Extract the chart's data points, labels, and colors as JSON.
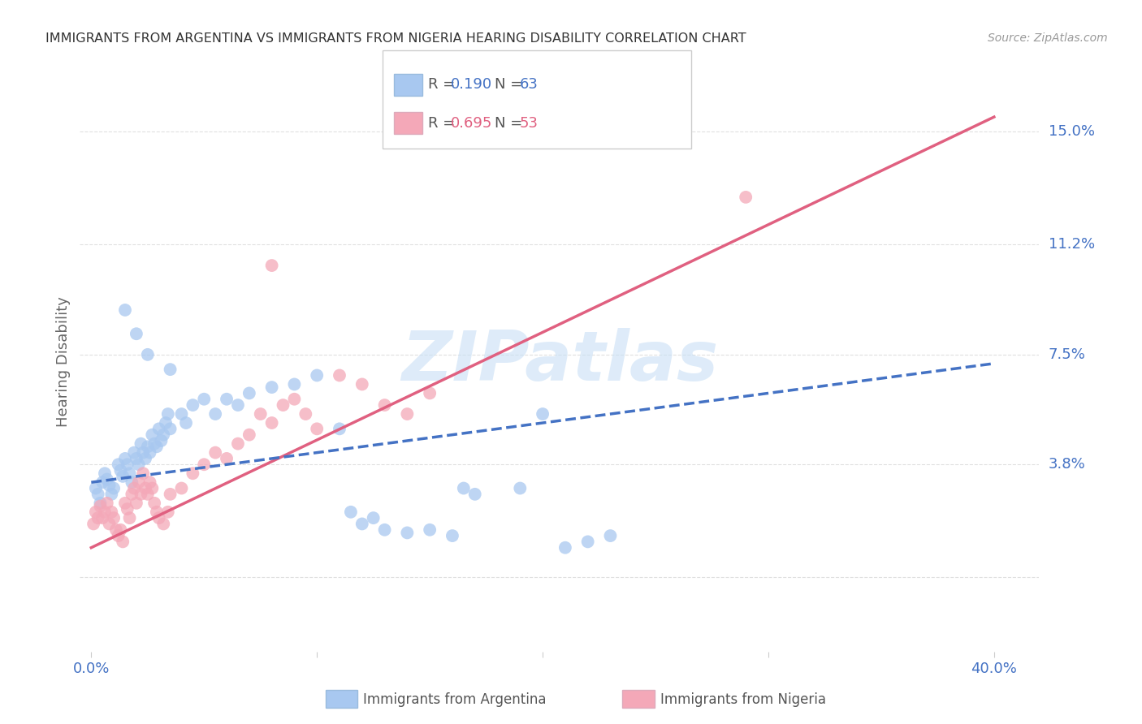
{
  "title": "IMMIGRANTS FROM ARGENTINA VS IMMIGRANTS FROM NIGERIA HEARING DISABILITY CORRELATION CHART",
  "source": "Source: ZipAtlas.com",
  "ylabel": "Hearing Disability",
  "y_ticks": [
    0.0,
    0.038,
    0.075,
    0.112,
    0.15
  ],
  "y_tick_labels": [
    "",
    "3.8%",
    "7.5%",
    "11.2%",
    "15.0%"
  ],
  "xlim": [
    -0.005,
    0.42
  ],
  "ylim": [
    -0.025,
    0.17
  ],
  "argentina_color": "#a8c8f0",
  "nigeria_color": "#f4a8b8",
  "argentina_line_color": "#4472c4",
  "nigeria_line_color": "#e06080",
  "watermark": "ZIPatlas",
  "watermark_color": "#c8dff5",
  "background_color": "#ffffff",
  "grid_color": "#e0e0e0",
  "tick_label_color": "#4472c4",
  "argentina_R": "0.190",
  "argentina_N": "63",
  "nigeria_R": "0.695",
  "nigeria_N": "53",
  "argentina_line_x": [
    0.0,
    0.4
  ],
  "argentina_line_y": [
    0.032,
    0.072
  ],
  "nigeria_line_x": [
    0.0,
    0.4
  ],
  "nigeria_line_y": [
    0.01,
    0.155
  ],
  "argentina_x": [
    0.002,
    0.003,
    0.004,
    0.005,
    0.006,
    0.007,
    0.008,
    0.009,
    0.01,
    0.012,
    0.013,
    0.014,
    0.015,
    0.016,
    0.017,
    0.018,
    0.019,
    0.02,
    0.021,
    0.022,
    0.023,
    0.024,
    0.025,
    0.026,
    0.027,
    0.028,
    0.029,
    0.03,
    0.031,
    0.032,
    0.033,
    0.034,
    0.035,
    0.04,
    0.042,
    0.045,
    0.05,
    0.055,
    0.06,
    0.065,
    0.07,
    0.08,
    0.09,
    0.1,
    0.11,
    0.115,
    0.12,
    0.125,
    0.13,
    0.14,
    0.15,
    0.16,
    0.165,
    0.17,
    0.19,
    0.2,
    0.21,
    0.22,
    0.23,
    0.015,
    0.02,
    0.025,
    0.035
  ],
  "argentina_y": [
    0.03,
    0.028,
    0.025,
    0.032,
    0.035,
    0.033,
    0.031,
    0.028,
    0.03,
    0.038,
    0.036,
    0.034,
    0.04,
    0.038,
    0.035,
    0.032,
    0.042,
    0.04,
    0.038,
    0.045,
    0.042,
    0.04,
    0.044,
    0.042,
    0.048,
    0.045,
    0.044,
    0.05,
    0.046,
    0.048,
    0.052,
    0.055,
    0.05,
    0.055,
    0.052,
    0.058,
    0.06,
    0.055,
    0.06,
    0.058,
    0.062,
    0.064,
    0.065,
    0.068,
    0.05,
    0.022,
    0.018,
    0.02,
    0.016,
    0.015,
    0.016,
    0.014,
    0.03,
    0.028,
    0.03,
    0.055,
    0.01,
    0.012,
    0.014,
    0.09,
    0.082,
    0.075,
    0.07
  ],
  "nigeria_x": [
    0.001,
    0.002,
    0.003,
    0.004,
    0.005,
    0.006,
    0.007,
    0.008,
    0.009,
    0.01,
    0.011,
    0.012,
    0.013,
    0.014,
    0.015,
    0.016,
    0.017,
    0.018,
    0.019,
    0.02,
    0.021,
    0.022,
    0.023,
    0.024,
    0.025,
    0.026,
    0.027,
    0.028,
    0.029,
    0.03,
    0.032,
    0.034,
    0.035,
    0.04,
    0.045,
    0.05,
    0.055,
    0.06,
    0.065,
    0.07,
    0.075,
    0.08,
    0.085,
    0.09,
    0.095,
    0.1,
    0.11,
    0.12,
    0.13,
    0.14,
    0.15,
    0.08,
    0.29
  ],
  "nigeria_y": [
    0.018,
    0.022,
    0.02,
    0.024,
    0.02,
    0.022,
    0.025,
    0.018,
    0.022,
    0.02,
    0.016,
    0.014,
    0.016,
    0.012,
    0.025,
    0.023,
    0.02,
    0.028,
    0.03,
    0.025,
    0.032,
    0.028,
    0.035,
    0.03,
    0.028,
    0.032,
    0.03,
    0.025,
    0.022,
    0.02,
    0.018,
    0.022,
    0.028,
    0.03,
    0.035,
    0.038,
    0.042,
    0.04,
    0.045,
    0.048,
    0.055,
    0.052,
    0.058,
    0.06,
    0.055,
    0.05,
    0.068,
    0.065,
    0.058,
    0.055,
    0.062,
    0.105,
    0.128
  ]
}
